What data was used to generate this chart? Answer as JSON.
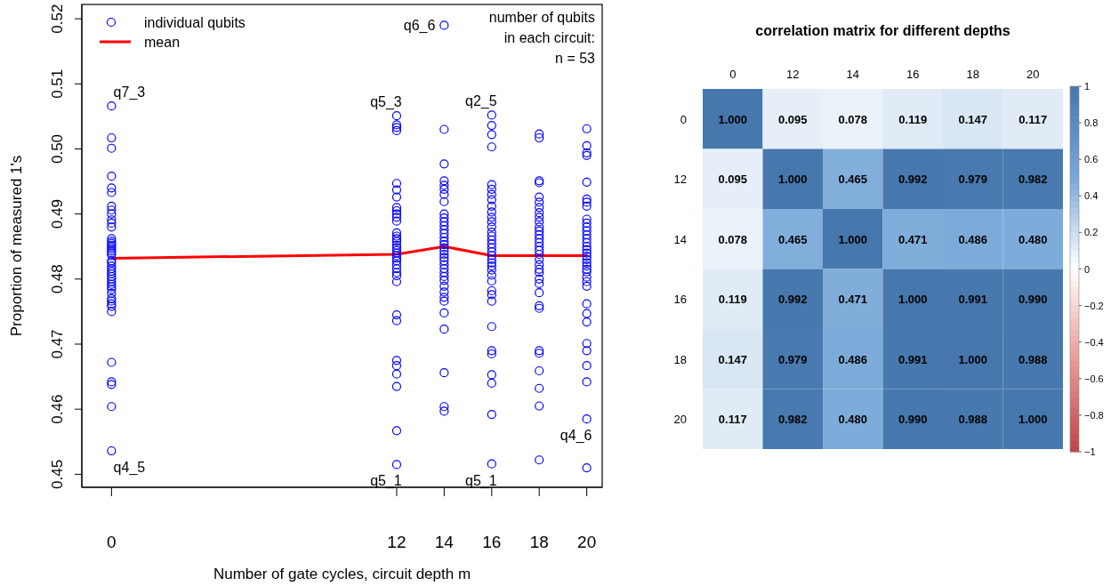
{
  "chart_data": [
    {
      "type": "scatter",
      "xlabel": "Number of gate cycles, circuit depth m",
      "ylabel": "Proportion of measured 1's",
      "xlim": [
        -1.25,
        20.65
      ],
      "xticks": [
        0,
        12,
        14,
        16,
        18,
        20
      ],
      "ylim": [
        0.448,
        0.5222
      ],
      "yticks": [
        0.45,
        0.46,
        0.47,
        0.48,
        0.49,
        {
          "value": 0.5,
          "label": "0.50"
        },
        0.51,
        0.52
      ],
      "grid": false,
      "legend": "top left",
      "series": [
        {
          "name": "individual qubits",
          "type": "scatter",
          "marker": "circle",
          "color": "#0000ff",
          "x": [
            0,
            0,
            0,
            0,
            0,
            0,
            0,
            0,
            0,
            0,
            0,
            0,
            0,
            0,
            0,
            0,
            0,
            0,
            0,
            0,
            0,
            0,
            0,
            0,
            0,
            0,
            0,
            0,
            0,
            0,
            0,
            0,
            0,
            0,
            0,
            0,
            0,
            0,
            0,
            0,
            0,
            0,
            0,
            0,
            12,
            12,
            12,
            12,
            12,
            12,
            12,
            12,
            12,
            12,
            12,
            12,
            12,
            12,
            12,
            12,
            12,
            12,
            12,
            12,
            12,
            12,
            12,
            12,
            12,
            12,
            12,
            12,
            12,
            12,
            12,
            12,
            12,
            12,
            12,
            12,
            14,
            14,
            14,
            14,
            14,
            14,
            14,
            14,
            14,
            14,
            14,
            14,
            14,
            14,
            14,
            14,
            14,
            14,
            14,
            14,
            14,
            14,
            14,
            14,
            14,
            14,
            14,
            14,
            14,
            14,
            14,
            14,
            14,
            14,
            14,
            14,
            16,
            16,
            16,
            16,
            16,
            16,
            16,
            16,
            16,
            16,
            16,
            16,
            16,
            16,
            16,
            16,
            16,
            16,
            16,
            16,
            16,
            16,
            16,
            16,
            16,
            16,
            16,
            16,
            16,
            16,
            16,
            16,
            16,
            16,
            16,
            16,
            18,
            18,
            18,
            18,
            18,
            18,
            18,
            18,
            18,
            18,
            18,
            18,
            18,
            18,
            18,
            18,
            18,
            18,
            18,
            18,
            18,
            18,
            18,
            18,
            18,
            18,
            18,
            18,
            18,
            18,
            18,
            18,
            18,
            20,
            20,
            20,
            20,
            20,
            20,
            20,
            20,
            20,
            20,
            20,
            20,
            20,
            20,
            20,
            20,
            20,
            20,
            20,
            20,
            20,
            20,
            20,
            20,
            20,
            20,
            20,
            20,
            20,
            20,
            20,
            20,
            20,
            20,
            20,
            20
          ],
          "values": [
            0.5066,
            0.5017,
            0.5001,
            0.4958,
            0.494,
            0.4933,
            0.4912,
            0.4906,
            0.49,
            0.4891,
            0.4886,
            0.488,
            0.4862,
            0.4858,
            0.4855,
            0.4852,
            0.4849,
            0.4846,
            0.4843,
            0.484,
            0.4837,
            0.4828,
            0.4825,
            0.482,
            0.4816,
            0.4812,
            0.4808,
            0.4804,
            0.48,
            0.4796,
            0.4792,
            0.4788,
            0.4784,
            0.4778,
            0.477,
            0.4766,
            0.4762,
            0.4758,
            0.475,
            0.4672,
            0.4642,
            0.4638,
            0.4604,
            0.4536,
            0.5051,
            0.5037,
            0.5033,
            0.5028,
            0.4947,
            0.4937,
            0.4926,
            0.491,
            0.4905,
            0.49,
            0.4895,
            0.4889,
            0.4871,
            0.4866,
            0.4862,
            0.4858,
            0.4852,
            0.4848,
            0.4844,
            0.484,
            0.4836,
            0.4832,
            0.4828,
            0.4822,
            0.4816,
            0.481,
            0.4805,
            0.4796,
            0.4745,
            0.4736,
            0.4675,
            0.4667,
            0.4654,
            0.4635,
            0.4567,
            0.4515,
            0.519,
            0.503,
            0.4977,
            0.4951,
            0.4944,
            0.4938,
            0.493,
            0.4919,
            0.49,
            0.4894,
            0.4888,
            0.4882,
            0.4876,
            0.487,
            0.4864,
            0.4858,
            0.4853,
            0.4848,
            0.4843,
            0.4838,
            0.4833,
            0.4828,
            0.4822,
            0.4816,
            0.481,
            0.4804,
            0.4798,
            0.4789,
            0.478,
            0.4772,
            0.4766,
            0.4748,
            0.4723,
            0.4656,
            0.4604,
            0.4597,
            0.5052,
            0.5036,
            0.5022,
            0.5003,
            0.4945,
            0.4938,
            0.493,
            0.4922,
            0.4912,
            0.4903,
            0.4895,
            0.4888,
            0.488,
            0.4872,
            0.4866,
            0.486,
            0.4854,
            0.4848,
            0.4842,
            0.4836,
            0.483,
            0.4825,
            0.482,
            0.4814,
            0.4806,
            0.4797,
            0.4782,
            0.4776,
            0.4766,
            0.4727,
            0.469,
            0.4685,
            0.4653,
            0.464,
            0.4592,
            0.4516,
            0.5023,
            0.5017,
            0.4951,
            0.4948,
            0.4926,
            0.4918,
            0.491,
            0.4902,
            0.4895,
            0.4888,
            0.488,
            0.4874,
            0.4868,
            0.4862,
            0.4856,
            0.485,
            0.4844,
            0.4838,
            0.483,
            0.4822,
            0.4815,
            0.481,
            0.48,
            0.4793,
            0.4779,
            0.4759,
            0.4755,
            0.469,
            0.4686,
            0.4659,
            0.4632,
            0.4605,
            0.4522,
            0.5031,
            0.5005,
            0.4994,
            0.499,
            0.4949,
            0.4923,
            0.4918,
            0.4912,
            0.4892,
            0.4886,
            0.488,
            0.4874,
            0.4868,
            0.4862,
            0.4856,
            0.485,
            0.4845,
            0.484,
            0.4835,
            0.483,
            0.4825,
            0.482,
            0.4815,
            0.4811,
            0.4803,
            0.4796,
            0.4789,
            0.4762,
            0.4747,
            0.4734,
            0.4701,
            0.469,
            0.4667,
            0.4642,
            0.4585,
            0.451
          ]
        },
        {
          "name": "mean",
          "type": "line",
          "color": "#ff0000",
          "x": [
            0,
            12,
            14,
            16,
            18,
            20
          ],
          "values": [
            0.4832,
            0.4838,
            0.485,
            0.4836,
            0.4836,
            0.4836
          ]
        }
      ],
      "annotations": [
        {
          "text": "q7_3",
          "x": 0,
          "y": 0.5066
        },
        {
          "text": "q4_5",
          "x": 0,
          "y": 0.4536
        },
        {
          "text": "q5_3",
          "x": 12,
          "y": 0.5051
        },
        {
          "text": "q5_1",
          "x": 12,
          "y": 0.4515
        },
        {
          "text": "q6_6",
          "x": 14,
          "y": 0.519
        },
        {
          "text": "q2_5",
          "x": 16,
          "y": 0.5052
        },
        {
          "text": "q5_1",
          "x": 16,
          "y": 0.4516
        },
        {
          "text": "q4_6",
          "x": 20,
          "y": 0.4585
        },
        "number of qubits\nin each circuit:\nn = 53"
      ]
    },
    {
      "type": "heatmap",
      "title": "correlation matrix for different depths",
      "categories": [
        "0",
        "12",
        "14",
        "16",
        "18",
        "20"
      ],
      "y_categories": [
        "0",
        "12",
        "14",
        "16",
        "18",
        "20"
      ],
      "cells": [
        [
          1,
          0.095,
          0.078,
          0.119,
          0.147,
          0.117
        ],
        [
          0.095,
          1,
          0.465,
          0.992,
          0.979,
          0.982
        ],
        [
          0.078,
          0.465,
          1,
          0.471,
          0.486,
          0.48
        ],
        [
          0.119,
          0.992,
          0.471,
          1,
          0.991,
          0.99
        ],
        [
          0.147,
          0.979,
          0.486,
          0.991,
          1,
          0.988
        ],
        [
          0.117,
          0.982,
          0.48,
          0.99,
          0.988,
          1
        ]
      ],
      "cell_labels": [
        [
          "1.000",
          "0.095",
          "0.078",
          "0.119",
          "0.147",
          "0.117"
        ],
        [
          "0.095",
          "1.000",
          "0.465",
          "0.992",
          "0.979",
          "0.982"
        ],
        [
          "0.078",
          "0.465",
          "1.000",
          "0.471",
          "0.486",
          "0.480"
        ],
        [
          "0.119",
          "0.992",
          "0.471",
          "1.000",
          "0.991",
          "0.990"
        ],
        [
          "0.147",
          "0.979",
          "0.486",
          "0.991",
          "1.000",
          "0.988"
        ],
        [
          "0.117",
          "0.982",
          "0.480",
          "0.990",
          "0.988",
          "1.000"
        ]
      ],
      "clim": [
        -1,
        1
      ],
      "cticks": [
        {
          "value": -1,
          "label": "−1"
        },
        {
          "value": -0.8,
          "label": "−0.8"
        },
        {
          "value": -0.6,
          "label": "−0.6"
        },
        {
          "value": -0.4,
          "label": "−0.4"
        },
        {
          "value": -0.2,
          "label": "−0.2"
        },
        0,
        0.2,
        0.4,
        0.6,
        0.8,
        1
      ]
    }
  ]
}
